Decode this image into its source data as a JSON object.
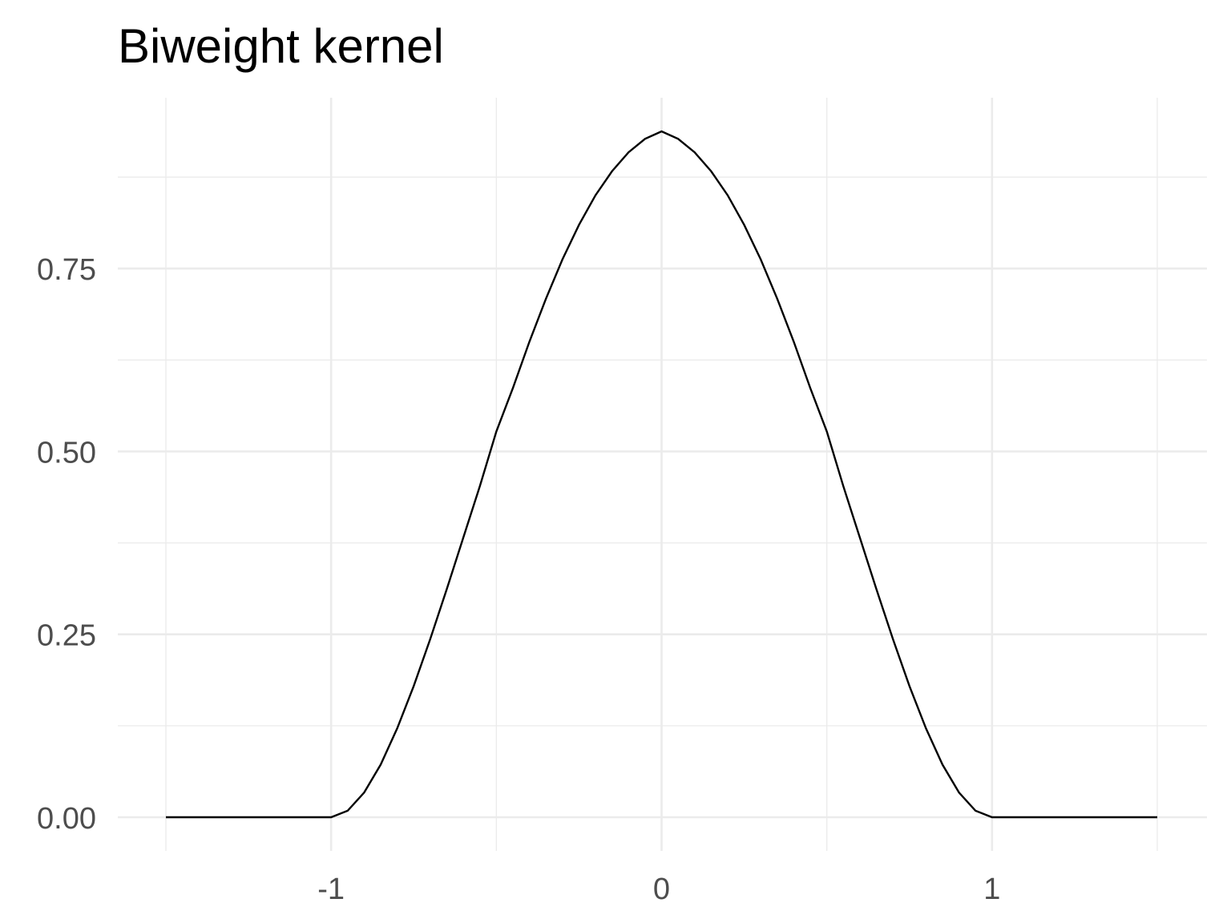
{
  "chart_data": {
    "type": "line",
    "title": "Biweight kernel",
    "xlabel": "",
    "ylabel": "",
    "xlim": [
      -1.5,
      1.5
    ],
    "ylim": [
      0,
      0.9375
    ],
    "x_major_ticks": [
      -1,
      0,
      1
    ],
    "x_tick_labels": [
      "-1",
      "0",
      "1"
    ],
    "x_minor_ticks": [
      -1.5,
      -0.5,
      0.5,
      1.5
    ],
    "y_major_ticks": [
      0,
      0.25,
      0.5,
      0.75
    ],
    "y_tick_labels": [
      "0.00",
      "0.25",
      "0.50",
      "0.75"
    ],
    "y_minor_ticks": [
      0.125,
      0.375,
      0.625,
      0.875
    ],
    "grid": true,
    "legend": "none",
    "line_color": "#000000",
    "series": [
      {
        "x": [
          -1.5,
          -1.4,
          -1.3,
          -1.2,
          -1.1,
          -1.0,
          -0.95,
          -0.9,
          -0.85,
          -0.8,
          -0.75,
          -0.7,
          -0.65,
          -0.6,
          -0.55,
          -0.5,
          -0.45,
          -0.4,
          -0.35,
          -0.3,
          -0.25,
          -0.2,
          -0.15,
          -0.1,
          -0.05,
          0.0,
          0.05,
          0.1,
          0.15,
          0.2,
          0.25,
          0.3,
          0.35,
          0.4,
          0.45,
          0.5,
          0.55,
          0.6,
          0.65,
          0.7,
          0.75,
          0.8,
          0.85,
          0.9,
          0.95,
          1.0,
          1.1,
          1.2,
          1.3,
          1.4,
          1.5
        ],
        "y": [
          0,
          0,
          0,
          0,
          0,
          0,
          0.0089,
          0.0338,
          0.072,
          0.1215,
          0.1794,
          0.2437,
          0.3119,
          0.3822,
          0.4525,
          0.5273,
          0.5866,
          0.65,
          0.7087,
          0.7625,
          0.8097,
          0.8502,
          0.883,
          0.9089,
          0.9273,
          0.9375,
          0.9273,
          0.9089,
          0.883,
          0.8502,
          0.8097,
          0.7625,
          0.7087,
          0.65,
          0.5866,
          0.5273,
          0.4525,
          0.3822,
          0.3119,
          0.2437,
          0.1794,
          0.1215,
          0.072,
          0.0338,
          0.0089,
          0,
          0,
          0,
          0,
          0,
          0
        ]
      }
    ]
  }
}
